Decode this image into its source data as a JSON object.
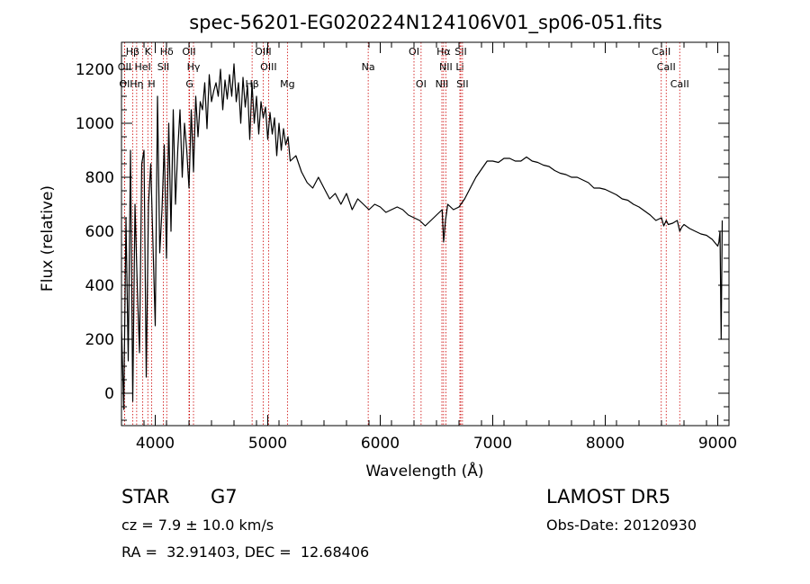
{
  "chart_data": {
    "type": "line",
    "title": "spec-56201-EG020224N124106V01_sp06-051.fits",
    "xlabel": "Wavelength (Å)",
    "ylabel": "Flux (relative)",
    "xlim": [
      3700,
      9100
    ],
    "ylim": [
      -120,
      1300
    ],
    "x_ticks": [
      4000,
      5000,
      6000,
      7000,
      8000,
      9000
    ],
    "y_ticks": [
      0,
      200,
      400,
      600,
      800,
      1000,
      1200
    ],
    "grid": false,
    "line_color": "#000000",
    "marker_color": "#cc0000",
    "series": [
      {
        "x": [
          3700,
          3720,
          3740,
          3760,
          3780,
          3800,
          3820,
          3840,
          3860,
          3880,
          3900,
          3920,
          3940,
          3960,
          3980,
          4000,
          4020,
          4040,
          4060,
          4080,
          4100,
          4120,
          4140,
          4160,
          4180,
          4200,
          4220,
          4240,
          4260,
          4280,
          4300,
          4320,
          4340,
          4360,
          4380,
          4400,
          4420,
          4440,
          4460,
          4480,
          4500,
          4520,
          4540,
          4560,
          4580,
          4600,
          4620,
          4640,
          4660,
          4680,
          4700,
          4720,
          4740,
          4760,
          4780,
          4800,
          4820,
          4840,
          4860,
          4880,
          4900,
          4920,
          4940,
          4960,
          4980,
          5000,
          5020,
          5040,
          5060,
          5080,
          5100,
          5120,
          5140,
          5160,
          5180,
          5200,
          5250,
          5300,
          5350,
          5400,
          5450,
          5500,
          5550,
          5600,
          5650,
          5700,
          5750,
          5800,
          5850,
          5900,
          5950,
          6000,
          6050,
          6100,
          6150,
          6200,
          6250,
          6300,
          6350,
          6400,
          6450,
          6500,
          6550,
          6563,
          6580,
          6600,
          6650,
          6700,
          6750,
          6800,
          6850,
          6900,
          6950,
          7000,
          7050,
          7100,
          7150,
          7200,
          7250,
          7300,
          7350,
          7400,
          7450,
          7500,
          7550,
          7600,
          7650,
          7700,
          7750,
          7800,
          7850,
          7900,
          7950,
          8000,
          8050,
          8100,
          8150,
          8200,
          8250,
          8300,
          8350,
          8400,
          8450,
          8500,
          8520,
          8542,
          8560,
          8600,
          8640,
          8662,
          8680,
          8700,
          8750,
          8800,
          8850,
          8900,
          8950,
          9000,
          9010,
          9020,
          9030,
          9040
        ],
        "y": [
          250,
          -60,
          650,
          120,
          900,
          -30,
          700,
          400,
          150,
          850,
          900,
          60,
          700,
          850,
          550,
          250,
          1100,
          520,
          680,
          920,
          500,
          1000,
          600,
          1050,
          700,
          900,
          1050,
          800,
          1000,
          900,
          760,
          1050,
          820,
          1100,
          950,
          1080,
          1050,
          1150,
          980,
          1180,
          1080,
          1120,
          1150,
          1100,
          1200,
          1050,
          1160,
          1090,
          1180,
          1100,
          1220,
          1080,
          1150,
          1000,
          1170,
          1060,
          1140,
          940,
          1150,
          1000,
          1100,
          960,
          1080,
          1020,
          1060,
          940,
          1040,
          960,
          1020,
          880,
          1000,
          900,
          980,
          920,
          950,
          860,
          880,
          820,
          780,
          760,
          800,
          760,
          720,
          740,
          700,
          740,
          680,
          720,
          700,
          680,
          700,
          690,
          670,
          680,
          690,
          680,
          660,
          650,
          640,
          620,
          640,
          660,
          680,
          560,
          640,
          700,
          680,
          690,
          720,
          760,
          800,
          830,
          860,
          860,
          855,
          870,
          870,
          860,
          860,
          875,
          860,
          855,
          845,
          840,
          825,
          815,
          810,
          800,
          800,
          790,
          780,
          760,
          760,
          755,
          745,
          735,
          720,
          715,
          700,
          690,
          675,
          660,
          640,
          650,
          620,
          640,
          625,
          630,
          640,
          600,
          615,
          625,
          610,
          600,
          590,
          585,
          570,
          545,
          560,
          600,
          200,
          640
        ]
      }
    ],
    "line_markers": [
      {
        "label": "Hβ",
        "x": 3799,
        "row": 1
      },
      {
        "label": "K",
        "x": 3934,
        "row": 1
      },
      {
        "label": "Hδ",
        "x": 4102,
        "row": 1
      },
      {
        "label": "OII",
        "x": 4300,
        "row": 1
      },
      {
        "label": "OIII",
        "x": 4959,
        "row": 1
      },
      {
        "label": "OI",
        "x": 6300,
        "row": 1
      },
      {
        "label": "Hα",
        "x": 6563,
        "row": 1
      },
      {
        "label": "SII",
        "x": 6716,
        "row": 1
      },
      {
        "label": "CaII",
        "x": 8498,
        "row": 1
      },
      {
        "label": "OII",
        "x": 3727,
        "row": 2
      },
      {
        "label": "HeI",
        "x": 3889,
        "row": 2
      },
      {
        "label": "SII",
        "x": 4072,
        "row": 2
      },
      {
        "label": "Hγ",
        "x": 4340,
        "row": 2
      },
      {
        "label": "OIII",
        "x": 5007,
        "row": 2
      },
      {
        "label": "Na",
        "x": 5893,
        "row": 2
      },
      {
        "label": "NII",
        "x": 6583,
        "row": 2
      },
      {
        "label": "Li",
        "x": 6708,
        "row": 2
      },
      {
        "label": "CaII",
        "x": 8542,
        "row": 2
      },
      {
        "label": "OI",
        "x": 3727,
        "row": 3
      },
      {
        "label": "Hη",
        "x": 3835,
        "row": 3
      },
      {
        "label": "H",
        "x": 3968,
        "row": 3
      },
      {
        "label": "G",
        "x": 4305,
        "row": 3
      },
      {
        "label": "Hβ",
        "x": 4861,
        "row": 3
      },
      {
        "label": "Mg",
        "x": 5175,
        "row": 3
      },
      {
        "label": "OI",
        "x": 6363,
        "row": 3
      },
      {
        "label": "NII",
        "x": 6548,
        "row": 3
      },
      {
        "label": "SII",
        "x": 6731,
        "row": 3
      },
      {
        "label": "CaII",
        "x": 8662,
        "row": 3
      }
    ]
  },
  "info": {
    "object_class": "STAR",
    "subclass": "G7",
    "redshift": "cz = 7.9 ± 10.0 km/s",
    "coordinates": "RA =  32.91403, DEC =  12.68406",
    "survey": "LAMOST DR5",
    "obs_date": "Obs-Date: 20120930"
  }
}
